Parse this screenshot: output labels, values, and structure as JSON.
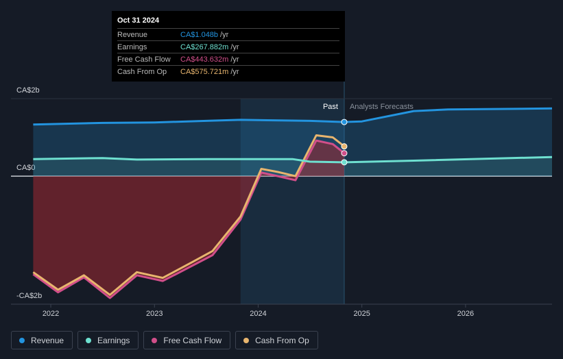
{
  "chart_data": {
    "type": "line",
    "xlim": [
      2021.616,
      2026.834
    ],
    "xticks": [
      2022,
      2023,
      2024,
      2025,
      2026
    ],
    "ylim": [
      -2.48,
      1.5
    ],
    "yticks": [
      {
        "value": 1.5,
        "label": "CA$2b"
      },
      {
        "value": 0,
        "label": "CA$0"
      },
      {
        "value": -2.48,
        "label": "-CA$2b"
      }
    ],
    "past_start": 2023.83,
    "present": 2024.83,
    "past_label": "Past",
    "forecast_label": "Analysts Forecasts",
    "series": [
      {
        "name": "Revenue",
        "color": "#2394df",
        "x": [
          2021.83,
          2022.5,
          2023.0,
          2023.5,
          2023.83,
          2024.5,
          2024.83,
          2025.0,
          2025.5,
          2025.83,
          2026.834
        ],
        "values": [
          1.0,
          1.03,
          1.04,
          1.07,
          1.09,
          1.07,
          1.048,
          1.06,
          1.26,
          1.29,
          1.31
        ]
      },
      {
        "name": "Earnings",
        "color": "#6ee0d0",
        "x": [
          2021.83,
          2022.5,
          2022.83,
          2023.5,
          2024.33,
          2024.5,
          2024.83,
          2025.5,
          2026.834
        ],
        "values": [
          0.33,
          0.35,
          0.32,
          0.33,
          0.33,
          0.28,
          0.268,
          0.3,
          0.37
        ]
      },
      {
        "name": "Free Cash Flow",
        "color": "#d14f8a",
        "x": [
          2021.83,
          2022.07,
          2022.32,
          2022.57,
          2022.83,
          2023.08,
          2023.36,
          2023.56,
          2023.83,
          2024.03,
          2024.19,
          2024.36,
          2024.56,
          2024.72,
          2024.83
        ],
        "values": [
          -1.9,
          -2.25,
          -1.96,
          -2.36,
          -1.92,
          -2.03,
          -1.74,
          -1.53,
          -0.84,
          0.07,
          0,
          -0.08,
          0.69,
          0.62,
          0.444
        ]
      },
      {
        "name": "Cash From Op",
        "color": "#e8b56e",
        "x": [
          2021.83,
          2022.07,
          2022.32,
          2022.57,
          2022.83,
          2023.08,
          2023.36,
          2023.56,
          2023.83,
          2024.03,
          2024.19,
          2024.36,
          2024.56,
          2024.72,
          2024.83
        ],
        "values": [
          -1.86,
          -2.2,
          -1.92,
          -2.3,
          -1.86,
          -1.97,
          -1.67,
          -1.45,
          -0.78,
          0.14,
          0.08,
          0.0,
          0.79,
          0.75,
          0.576
        ]
      }
    ],
    "tooltip": {
      "date": "Oct 31 2024",
      "rows": [
        {
          "label": "Revenue",
          "value": "CA$1.048b",
          "unit": "/yr"
        },
        {
          "label": "Earnings",
          "value": "CA$267.882m",
          "unit": "/yr"
        },
        {
          "label": "Free Cash Flow",
          "value": "CA$443.632m",
          "unit": "/yr"
        },
        {
          "label": "Cash From Op",
          "value": "CA$575.721m",
          "unit": "/yr"
        }
      ]
    }
  }
}
